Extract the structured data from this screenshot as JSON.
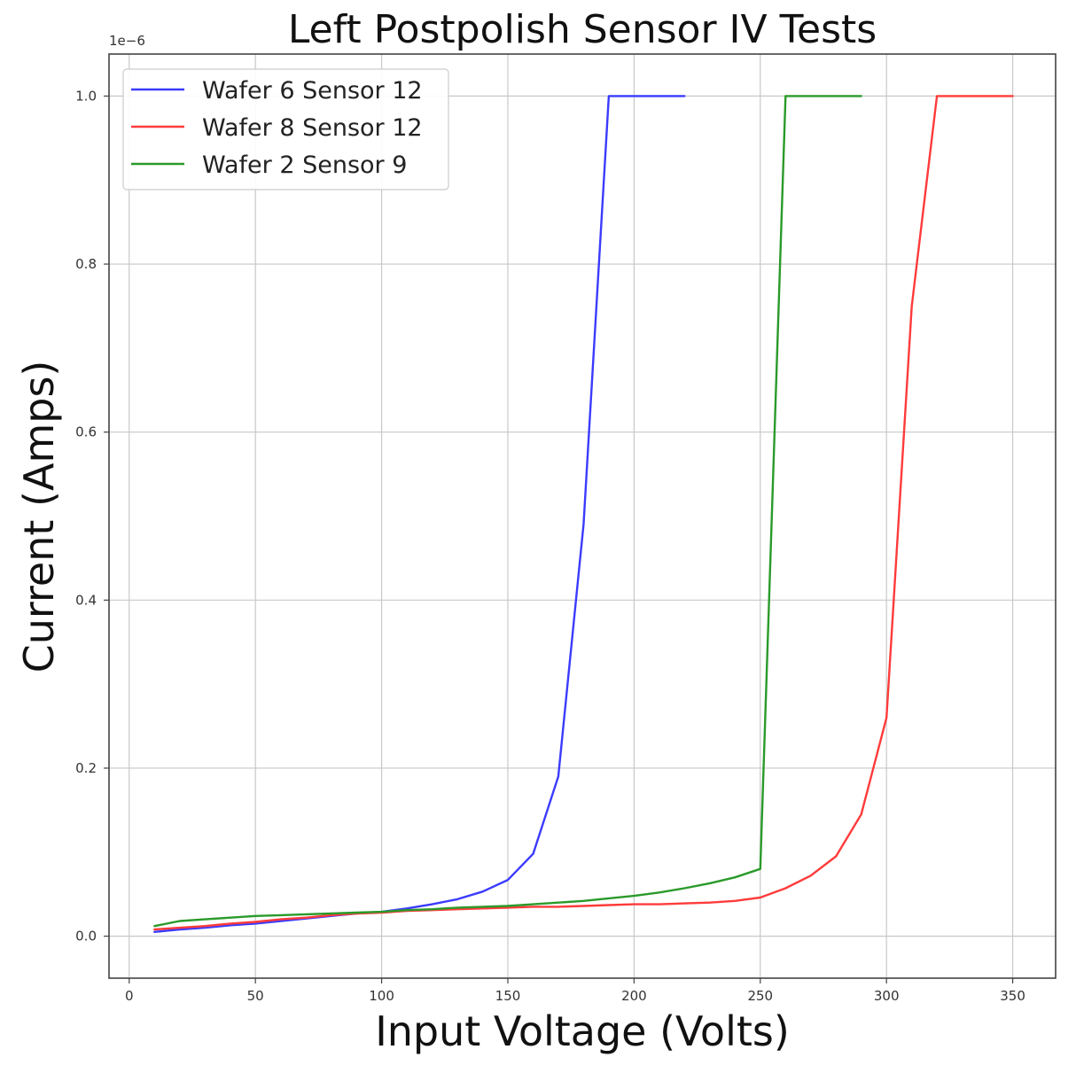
{
  "chart_data": {
    "type": "line",
    "title": "Left Postpolish Sensor IV Tests",
    "xlabel": "Input Voltage (Volts)",
    "ylabel": "Current (Amps)",
    "y_offset_label": "1e−6",
    "xlim": [
      -8,
      367
    ],
    "ylim": [
      -0.05,
      1.05
    ],
    "x_ticks": [
      0,
      50,
      100,
      150,
      200,
      250,
      300,
      350
    ],
    "x_tick_labels": [
      "0",
      "50",
      "100",
      "150",
      "200",
      "250",
      "300",
      "350"
    ],
    "y_ticks": [
      0.0,
      0.2,
      0.4,
      0.6,
      0.8,
      1.0
    ],
    "y_tick_labels": [
      "0.0",
      "0.2",
      "0.4",
      "0.6",
      "0.8",
      "1.0"
    ],
    "grid": true,
    "legend_position": "top-left",
    "series": [
      {
        "name": "Wafer 6 Sensor 12",
        "color": "#3b3bff",
        "x": [
          10,
          20,
          30,
          40,
          50,
          60,
          70,
          80,
          90,
          100,
          110,
          120,
          130,
          140,
          150,
          160,
          170,
          180,
          190,
          200,
          210,
          220
        ],
        "y": [
          0.005,
          0.008,
          0.01,
          0.013,
          0.015,
          0.018,
          0.021,
          0.024,
          0.027,
          0.029,
          0.033,
          0.038,
          0.044,
          0.053,
          0.067,
          0.098,
          0.19,
          0.49,
          1.0,
          1.0,
          1.0,
          1.0
        ]
      },
      {
        "name": "Wafer 8 Sensor 12",
        "color": "#ff3b3b",
        "x": [
          10,
          20,
          30,
          40,
          50,
          60,
          70,
          80,
          90,
          100,
          110,
          120,
          130,
          140,
          150,
          160,
          170,
          180,
          190,
          200,
          210,
          220,
          230,
          240,
          250,
          260,
          270,
          280,
          290,
          300,
          310,
          320,
          330,
          340,
          350
        ],
        "y": [
          0.008,
          0.01,
          0.012,
          0.015,
          0.017,
          0.02,
          0.022,
          0.025,
          0.027,
          0.028,
          0.03,
          0.031,
          0.032,
          0.033,
          0.034,
          0.035,
          0.035,
          0.036,
          0.037,
          0.038,
          0.038,
          0.039,
          0.04,
          0.042,
          0.046,
          0.057,
          0.072,
          0.095,
          0.145,
          0.26,
          0.75,
          1.0,
          1.0,
          1.0,
          1.0
        ]
      },
      {
        "name": "Wafer 2 Sensor 9",
        "color": "#2a9a2a",
        "x": [
          10,
          20,
          30,
          40,
          50,
          60,
          70,
          80,
          90,
          100,
          110,
          120,
          130,
          140,
          150,
          160,
          170,
          180,
          190,
          200,
          210,
          220,
          230,
          240,
          250,
          260,
          270,
          280,
          290
        ],
        "y": [
          0.012,
          0.018,
          0.02,
          0.022,
          0.024,
          0.025,
          0.026,
          0.027,
          0.028,
          0.029,
          0.031,
          0.032,
          0.034,
          0.035,
          0.036,
          0.038,
          0.04,
          0.042,
          0.045,
          0.048,
          0.052,
          0.057,
          0.063,
          0.07,
          0.08,
          1.0,
          1.0,
          1.0,
          1.0
        ]
      }
    ]
  }
}
